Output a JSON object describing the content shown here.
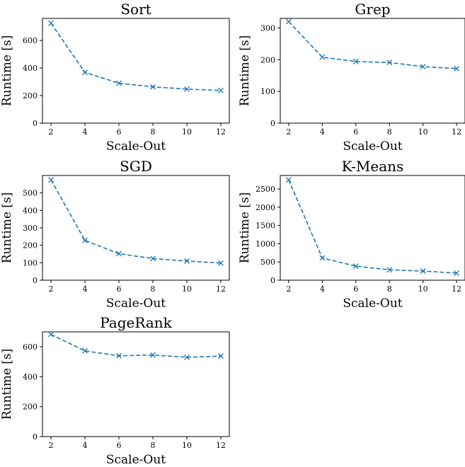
{
  "chart_data": [
    {
      "type": "line",
      "title": "Sort",
      "xlabel": "Scale-Out",
      "ylabel": "Runtime [s]",
      "x": [
        2,
        4,
        6,
        8,
        10,
        12
      ],
      "xticks": [
        "2",
        "4",
        "6",
        "8",
        "10",
        "12"
      ],
      "xlim": [
        1.5,
        12.5
      ],
      "yticks": [
        0,
        200,
        400,
        600
      ],
      "ylim": [
        0,
        760
      ],
      "series": [
        {
          "values": [
            725,
            368,
            290,
            263,
            247,
            237
          ],
          "color": "#1f77b4",
          "marker": "x",
          "linestyle": "dashed"
        }
      ],
      "grid": false
    },
    {
      "type": "line",
      "title": "Grep",
      "xlabel": "Scale-Out",
      "ylabel": "Runtime [s]",
      "x": [
        2,
        4,
        6,
        8,
        10,
        12
      ],
      "xticks": [
        "2",
        "4",
        "6",
        "8",
        "10",
        "12"
      ],
      "xlim": [
        1.5,
        12.5
      ],
      "yticks": [
        0,
        100,
        200,
        300
      ],
      "ylim": [
        0,
        330
      ],
      "series": [
        {
          "values": [
            320,
            208,
            194,
            191,
            178,
            172
          ],
          "color": "#1f77b4",
          "marker": "x",
          "linestyle": "dashed"
        }
      ],
      "grid": false
    },
    {
      "type": "line",
      "title": "SGD",
      "xlabel": "Scale-Out",
      "ylabel": "Runtime [s]",
      "x": [
        2,
        4,
        6,
        8,
        10,
        12
      ],
      "xticks": [
        "2",
        "4",
        "6",
        "8",
        "10",
        "12"
      ],
      "xlim": [
        1.5,
        12.5
      ],
      "yticks": [
        0,
        100,
        200,
        300,
        400,
        500
      ],
      "ylim": [
        0,
        600
      ],
      "series": [
        {
          "values": [
            575,
            228,
            152,
            124,
            110,
            98
          ],
          "color": "#1f77b4",
          "marker": "x",
          "linestyle": "dashed"
        }
      ],
      "grid": false
    },
    {
      "type": "line",
      "title": "K-Means",
      "xlabel": "Scale-Out",
      "ylabel": "Runtime [s]",
      "x": [
        2,
        4,
        6,
        8,
        10,
        12
      ],
      "xticks": [
        "2",
        "4",
        "6",
        "8",
        "10",
        "12"
      ],
      "xlim": [
        1.5,
        12.5
      ],
      "yticks": [
        0,
        500,
        1000,
        1500,
        2000,
        2500
      ],
      "ylim": [
        0,
        2870
      ],
      "series": [
        {
          "values": [
            2750,
            610,
            385,
            285,
            250,
            195
          ],
          "color": "#1f77b4",
          "marker": "x",
          "linestyle": "dashed"
        }
      ],
      "grid": false
    },
    {
      "type": "line",
      "title": "PageRank",
      "xlabel": "Scale-Out",
      "ylabel": "Runtime [s]",
      "x": [
        2,
        4,
        6,
        8,
        10,
        12
      ],
      "xticks": [
        "2",
        "4",
        "6",
        "8",
        "10",
        "12"
      ],
      "xlim": [
        1.5,
        12.5
      ],
      "yticks": [
        0,
        200,
        400,
        600
      ],
      "ylim": [
        0,
        700
      ],
      "series": [
        {
          "values": [
            683,
            573,
            540,
            545,
            530,
            538
          ],
          "color": "#1f77b4",
          "marker": "x",
          "linestyle": "dashed"
        }
      ],
      "grid": false
    }
  ]
}
